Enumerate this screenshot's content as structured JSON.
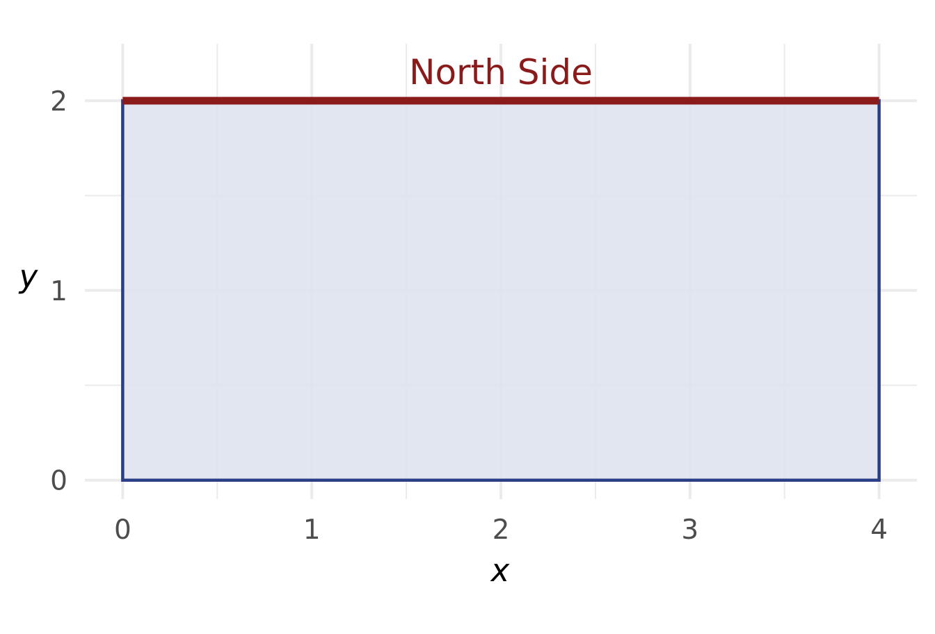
{
  "chart_data": {
    "type": "area",
    "xlabel": "x",
    "ylabel": "y",
    "xlim": [
      -0.2,
      4.2
    ],
    "ylim": [
      -0.1,
      2.3
    ],
    "x_ticks": [
      0,
      1,
      2,
      3,
      4
    ],
    "y_ticks": [
      0,
      1,
      2
    ],
    "x_tick_labels": [
      "0",
      "1",
      "2",
      "3",
      "4"
    ],
    "y_tick_labels": [
      "0",
      "1",
      "2"
    ],
    "x_minor_ticks": [
      0.5,
      1.5,
      2.5,
      3.5
    ],
    "y_minor_ticks": [
      0.5,
      1.5
    ],
    "grid": true,
    "rectangle": {
      "x": [
        0,
        4,
        4,
        0,
        0
      ],
      "y": [
        0,
        0,
        2,
        2,
        0
      ],
      "fill_color": "#dfe3ee",
      "outline_color": "#2a3f86"
    },
    "highlight_segment": {
      "x": [
        0,
        4
      ],
      "y": [
        2,
        2
      ],
      "color": "#8b1a1a"
    },
    "annotation": {
      "text": "North Side",
      "x": 2,
      "y": 2.15,
      "color": "#8b1a1a"
    }
  }
}
